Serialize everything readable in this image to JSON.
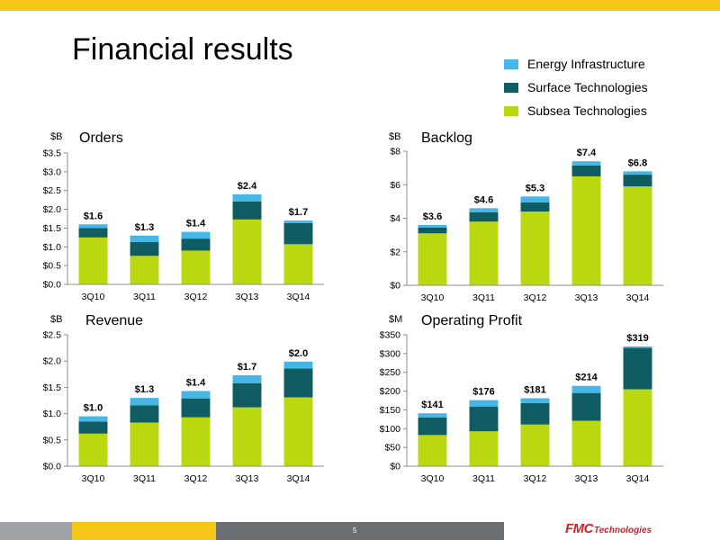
{
  "page": {
    "title": "Financial results",
    "page_number": "5",
    "logo_main": "FMC",
    "logo_sub": "Technologies"
  },
  "colors": {
    "top_bar": "#f5c518",
    "footer_gray": "#9fa3a7",
    "footer_yellow": "#f5c518",
    "footer_dark": "#6b6e71",
    "energy": "#45b6e6",
    "surface": "#0f5c63",
    "subsea": "#bcd810",
    "logo": "#d0202a"
  },
  "legend": [
    {
      "label": "Energy Infrastructure",
      "color": "#45b6e6"
    },
    {
      "label": "Surface Technologies",
      "color": "#0f5c63"
    },
    {
      "label": "Subsea Technologies",
      "color": "#bcd810"
    }
  ],
  "chart_data": [
    {
      "type": "bar",
      "stacked": true,
      "title": "Orders",
      "unit": "$B",
      "categories": [
        "3Q10",
        "3Q11",
        "3Q12",
        "3Q13",
        "3Q14"
      ],
      "ylim": [
        0,
        3.5
      ],
      "yticks": [
        0,
        0.5,
        1.0,
        1.5,
        2.0,
        2.5,
        3.0,
        3.5
      ],
      "ytick_labels": [
        "$0.0",
        "$0.5",
        "$1.0",
        "$1.5",
        "$2.0",
        "$2.5",
        "$3.0",
        "$3.5"
      ],
      "series": [
        {
          "name": "Subsea Technologies",
          "values": [
            1.25,
            0.76,
            0.9,
            1.73,
            1.07
          ]
        },
        {
          "name": "Surface Technologies",
          "values": [
            0.25,
            0.37,
            0.32,
            0.48,
            0.56
          ]
        },
        {
          "name": "Energy Infrastructure",
          "values": [
            0.1,
            0.17,
            0.18,
            0.19,
            0.07
          ]
        }
      ],
      "totals": [
        "$1.6",
        "$1.3",
        "$1.4",
        "$2.4",
        "$1.7"
      ],
      "grid": false
    },
    {
      "type": "bar",
      "stacked": true,
      "title": "Backlog",
      "unit": "$B",
      "categories": [
        "3Q10",
        "3Q11",
        "3Q12",
        "3Q13",
        "3Q14"
      ],
      "ylim": [
        0,
        8
      ],
      "yticks": [
        0,
        2,
        4,
        6,
        8
      ],
      "ytick_labels": [
        "$0",
        "$2",
        "$4",
        "$6",
        "$8"
      ],
      "series": [
        {
          "name": "Subsea Technologies",
          "values": [
            3.1,
            3.8,
            4.4,
            6.5,
            5.9
          ]
        },
        {
          "name": "Surface Technologies",
          "values": [
            0.35,
            0.55,
            0.55,
            0.65,
            0.7
          ]
        },
        {
          "name": "Energy Infrastructure",
          "values": [
            0.15,
            0.25,
            0.35,
            0.25,
            0.2
          ]
        }
      ],
      "totals": [
        "$3.6",
        "$4.6",
        "$5.3",
        "$7.4",
        "$6.8"
      ],
      "grid": false
    },
    {
      "type": "bar",
      "stacked": true,
      "title": "Revenue",
      "unit": "$B",
      "categories": [
        "3Q10",
        "3Q11",
        "3Q12",
        "3Q13",
        "3Q14"
      ],
      "ylim": [
        0,
        2.5
      ],
      "yticks": [
        0,
        0.5,
        1.0,
        1.5,
        2.0,
        2.5
      ],
      "ytick_labels": [
        "$0.0",
        "$0.5",
        "$1.0",
        "$1.5",
        "$2.0",
        "$2.5"
      ],
      "series": [
        {
          "name": "Subsea Technologies",
          "values": [
            0.62,
            0.83,
            0.93,
            1.12,
            1.31
          ]
        },
        {
          "name": "Surface Technologies",
          "values": [
            0.23,
            0.33,
            0.36,
            0.46,
            0.55
          ]
        },
        {
          "name": "Energy Infrastructure",
          "values": [
            0.1,
            0.14,
            0.14,
            0.15,
            0.13
          ]
        }
      ],
      "totals": [
        "$1.0",
        "$1.3",
        "$1.4",
        "$1.7",
        "$2.0"
      ],
      "grid": false
    },
    {
      "type": "bar",
      "stacked": true,
      "title": "Operating Profit",
      "unit": "$M",
      "categories": [
        "3Q10",
        "3Q11",
        "3Q12",
        "3Q13",
        "3Q14"
      ],
      "ylim": [
        0,
        350
      ],
      "yticks": [
        0,
        50,
        100,
        150,
        200,
        250,
        300,
        350
      ],
      "ytick_labels": [
        "$0",
        "$50",
        "$100",
        "$150",
        "$200",
        "$250",
        "$300",
        "$350"
      ],
      "series": [
        {
          "name": "Subsea Technologies",
          "values": [
            83,
            93,
            111,
            121,
            205
          ]
        },
        {
          "name": "Surface Technologies",
          "values": [
            47,
            66,
            57,
            74,
            110
          ]
        },
        {
          "name": "Energy Infrastructure",
          "values": [
            11,
            17,
            13,
            19,
            4
          ]
        }
      ],
      "totals": [
        "$141",
        "$176",
        "$181",
        "$214",
        "$319"
      ],
      "grid": false
    }
  ]
}
